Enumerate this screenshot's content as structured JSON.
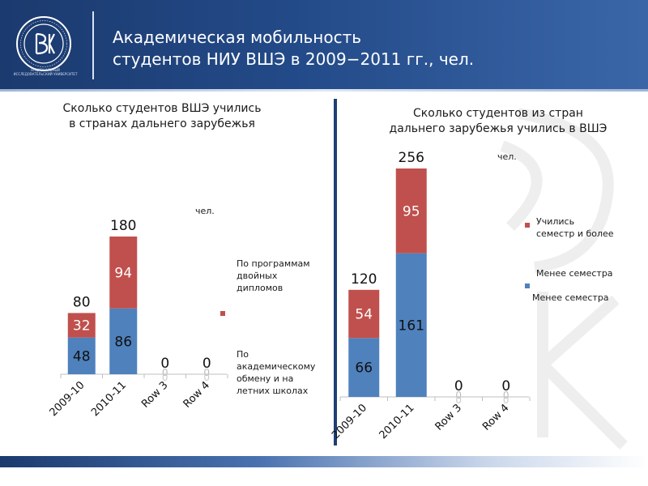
{
  "header": {
    "title": "Академическая мобильность\nстудентов НИУ ВШЭ в 2009−2011 гг., чел.",
    "logo_caption": "НАЦИОНАЛЬНЫЙ ИССЛЕДОВАТЕЛЬСКИЙ УНИВЕРСИТЕТ"
  },
  "colors": {
    "blue": "#4f81bd",
    "red": "#c0504d",
    "navy": "#1f3f74"
  },
  "chart_data": [
    {
      "type": "bar",
      "stacked": true,
      "title": "Сколько студентов ВШЭ учились\nв странах дальнего зарубежья",
      "unit": "чел.",
      "categories": [
        "2009-10",
        "2010-11",
        "Row 3",
        "Row 4"
      ],
      "series": [
        {
          "name": "По академическому обмену и на летних школах",
          "values": [
            48,
            86,
            0,
            0
          ],
          "color": "#4f81bd"
        },
        {
          "name": "По программам двойных дипломов",
          "values": [
            32,
            94,
            0,
            0
          ],
          "color": "#c0504d"
        }
      ],
      "totals": [
        80,
        180,
        0,
        0
      ],
      "ylim": [
        0,
        180
      ]
    },
    {
      "type": "bar",
      "stacked": true,
      "title": "Сколько студентов из стран\nдальнего зарубежья учились в ВШЭ",
      "unit": "чел.",
      "categories": [
        "2009-10",
        "2010-11",
        "Row 3",
        "Row 4"
      ],
      "series": [
        {
          "name": "Менее семестра",
          "values": [
            66,
            161,
            0,
            0
          ],
          "color": "#4f81bd"
        },
        {
          "name": "Учились семестр и более",
          "values": [
            54,
            95,
            0,
            0
          ],
          "color": "#c0504d"
        }
      ],
      "totals": [
        120,
        256,
        0,
        0
      ],
      "ylim": [
        0,
        256
      ]
    }
  ],
  "legends": {
    "left_red": "По программам\nдвойных\nдипломов",
    "left_blue": "По\nакадемическому\nобмену и на\nлетних школах",
    "right_red": "Учились\nсеместр и более",
    "right_blue": "Менее семестра",
    "right_blue_dup": "Менее семестра"
  }
}
